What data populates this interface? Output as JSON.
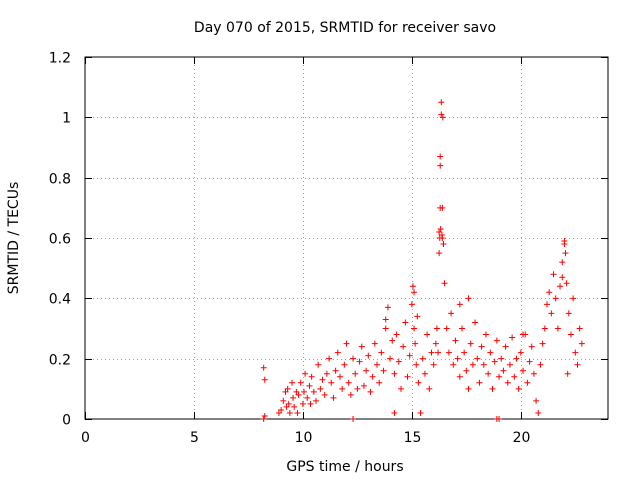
{
  "chart_data": {
    "type": "scatter",
    "title": "Day 070 of 2015, SRMTID for receiver savo",
    "xlabel": "GPS time / hours",
    "ylabel": "SRMTID / TECUs",
    "xlim": [
      0,
      24
    ],
    "ylim": [
      0,
      1.2
    ],
    "xticks": [
      0,
      5,
      10,
      15,
      20
    ],
    "xtick_labels": [
      "0",
      "5",
      "10",
      "15",
      "20"
    ],
    "yticks": [
      0,
      0.2,
      0.4,
      0.6,
      0.8,
      1.0,
      1.2
    ],
    "ytick_labels": [
      "0",
      "0.2",
      "0.4",
      "0.6",
      "0.8",
      "1",
      "1.2"
    ],
    "grid": true,
    "marker": "+",
    "series": [
      {
        "name": "SRMTID",
        "color": "#ff0000",
        "x": [
          8.2,
          8.2,
          8.25,
          8.25,
          8.9,
          9.0,
          9.1,
          9.2,
          9.25,
          9.3,
          9.35,
          9.4,
          9.5,
          9.55,
          9.6,
          9.7,
          9.75,
          9.8,
          9.9,
          10.0,
          10.05,
          10.1,
          10.2,
          10.3,
          10.35,
          10.4,
          10.5,
          10.6,
          10.7,
          10.8,
          10.9,
          11.0,
          11.1,
          11.2,
          11.3,
          11.4,
          11.5,
          11.6,
          11.7,
          11.8,
          11.9,
          12.0,
          12.1,
          12.2,
          12.3,
          12.4,
          12.5,
          12.6,
          12.7,
          12.8,
          12.9,
          13.0,
          13.1,
          13.2,
          13.3,
          13.4,
          13.5,
          13.6,
          13.7,
          13.8,
          13.9,
          14.0,
          14.1,
          14.2,
          14.3,
          14.4,
          14.5,
          14.6,
          14.7,
          14.8,
          14.9,
          15.0,
          15.05,
          15.1,
          15.15,
          15.2,
          15.25,
          15.3,
          15.4,
          15.5,
          15.6,
          15.7,
          15.8,
          15.9,
          16.0,
          16.1,
          16.15,
          16.2,
          16.25,
          16.25,
          16.3,
          16.3,
          16.3,
          16.35,
          16.35,
          16.4,
          16.4,
          16.45,
          16.5,
          16.6,
          16.7,
          16.8,
          16.9,
          17.0,
          17.1,
          17.2,
          17.3,
          17.4,
          17.5,
          17.6,
          17.7,
          17.8,
          17.9,
          18.0,
          18.1,
          18.2,
          18.3,
          18.4,
          18.5,
          18.6,
          18.7,
          18.8,
          18.9,
          19.0,
          19.1,
          19.2,
          19.3,
          19.4,
          19.5,
          19.6,
          19.7,
          19.8,
          19.9,
          20.0,
          20.1,
          20.2,
          20.3,
          20.4,
          20.5,
          20.6,
          20.7,
          20.8,
          20.9,
          21.0,
          21.1,
          21.2,
          21.3,
          21.4,
          21.5,
          21.6,
          21.7,
          21.8,
          21.9,
          22.0,
          22.05,
          22.1,
          22.2,
          22.3,
          22.4,
          22.5,
          22.6,
          22.7,
          22.8,
          16.28,
          16.32,
          16.38,
          16.42,
          15.1,
          13.8,
          17.2,
          19.0,
          20.1,
          22.0,
          21.9,
          22.15,
          18.9,
          17.6,
          12.3,
          14.2
        ],
        "y": [
          0.0,
          0.17,
          0.13,
          0.01,
          0.02,
          0.03,
          0.06,
          0.09,
          0.04,
          0.1,
          0.05,
          0.02,
          0.12,
          0.07,
          0.04,
          0.09,
          0.02,
          0.08,
          0.12,
          0.05,
          0.09,
          0.15,
          0.07,
          0.11,
          0.05,
          0.14,
          0.09,
          0.06,
          0.18,
          0.1,
          0.13,
          0.08,
          0.15,
          0.2,
          0.12,
          0.07,
          0.16,
          0.22,
          0.14,
          0.1,
          0.18,
          0.25,
          0.12,
          0.08,
          0.2,
          0.15,
          0.1,
          0.19,
          0.24,
          0.11,
          0.16,
          0.21,
          0.09,
          0.14,
          0.25,
          0.18,
          0.12,
          0.22,
          0.16,
          0.3,
          0.37,
          0.2,
          0.26,
          0.15,
          0.28,
          0.19,
          0.1,
          0.24,
          0.32,
          0.14,
          0.21,
          0.38,
          0.44,
          0.3,
          0.25,
          0.18,
          0.34,
          0.12,
          0.02,
          0.2,
          0.15,
          0.28,
          0.1,
          0.22,
          0.18,
          0.25,
          0.3,
          0.22,
          0.55,
          0.62,
          0.7,
          0.87,
          0.84,
          1.05,
          1.01,
          0.7,
          0.6,
          0.58,
          0.45,
          0.3,
          0.22,
          0.35,
          0.18,
          0.26,
          0.2,
          0.14,
          0.3,
          0.22,
          0.16,
          0.1,
          0.25,
          0.18,
          0.32,
          0.2,
          0.12,
          0.24,
          0.18,
          0.28,
          0.15,
          0.22,
          0.1,
          0.19,
          0.26,
          0.14,
          0.2,
          0.16,
          0.24,
          0.12,
          0.18,
          0.27,
          0.14,
          0.2,
          0.1,
          0.22,
          0.16,
          0.28,
          0.12,
          0.19,
          0.24,
          0.15,
          0.06,
          0.02,
          0.18,
          0.25,
          0.3,
          0.38,
          0.42,
          0.35,
          0.48,
          0.4,
          0.3,
          0.44,
          0.52,
          0.59,
          0.55,
          0.45,
          0.35,
          0.28,
          0.4,
          0.22,
          0.18,
          0.3,
          0.25,
          0.6,
          0.63,
          0.61,
          1.0,
          0.42,
          0.33,
          0.38,
          0.0,
          0.28,
          0.58,
          0.47,
          0.15,
          0.0,
          0.4,
          0.0,
          0.02
        ]
      }
    ]
  }
}
